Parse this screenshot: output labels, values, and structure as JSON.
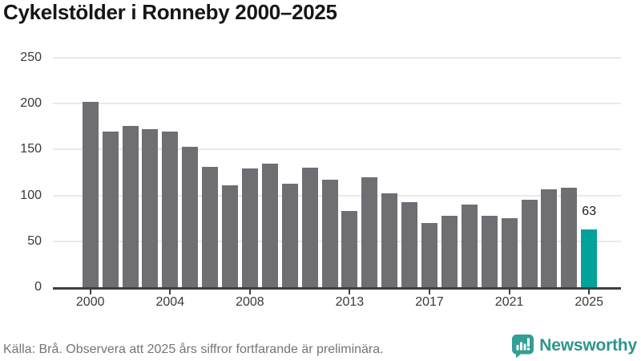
{
  "title": "Cykelstölder i Ronneby 2000–2025",
  "footer": {
    "source": "Källa: Brå. Observera att 2025 års siffror fortfarande är preliminära.",
    "brand": "Newsworthy"
  },
  "colors": {
    "title_text": "#161616",
    "axis_text": "#3a3a3a",
    "axis_line": "#3f3f3f",
    "grid": "#e9e9e9",
    "bar": "#6e6e73",
    "highlight": "#00a29a",
    "footer_text": "#757575",
    "brand": "#339e96",
    "brand_text": "#2e948d"
  },
  "chart_data": {
    "type": "bar",
    "title": "Cykelstölder i Ronneby 2000–2025",
    "categories": [
      2000,
      2001,
      2002,
      2003,
      2004,
      2005,
      2006,
      2007,
      2008,
      2009,
      2010,
      2011,
      2012,
      2013,
      2014,
      2015,
      2016,
      2017,
      2018,
      2019,
      2020,
      2021,
      2022,
      2023,
      2024,
      2025
    ],
    "values": [
      202,
      170,
      176,
      172,
      170,
      153,
      131,
      111,
      129,
      135,
      113,
      130,
      117,
      83,
      120,
      102,
      93,
      70,
      78,
      90,
      78,
      75,
      95,
      107,
      108,
      63
    ],
    "highlight_index": 25,
    "highlight_label": "63",
    "x_tick_labels": [
      "2000",
      "2004",
      "2008",
      "2013",
      "2017",
      "2021",
      "2025"
    ],
    "y_ticks": [
      0,
      50,
      100,
      150,
      200,
      250
    ],
    "ylim": [
      0,
      250
    ],
    "grid": true,
    "legend": false,
    "xlabel": "",
    "ylabel": ""
  }
}
